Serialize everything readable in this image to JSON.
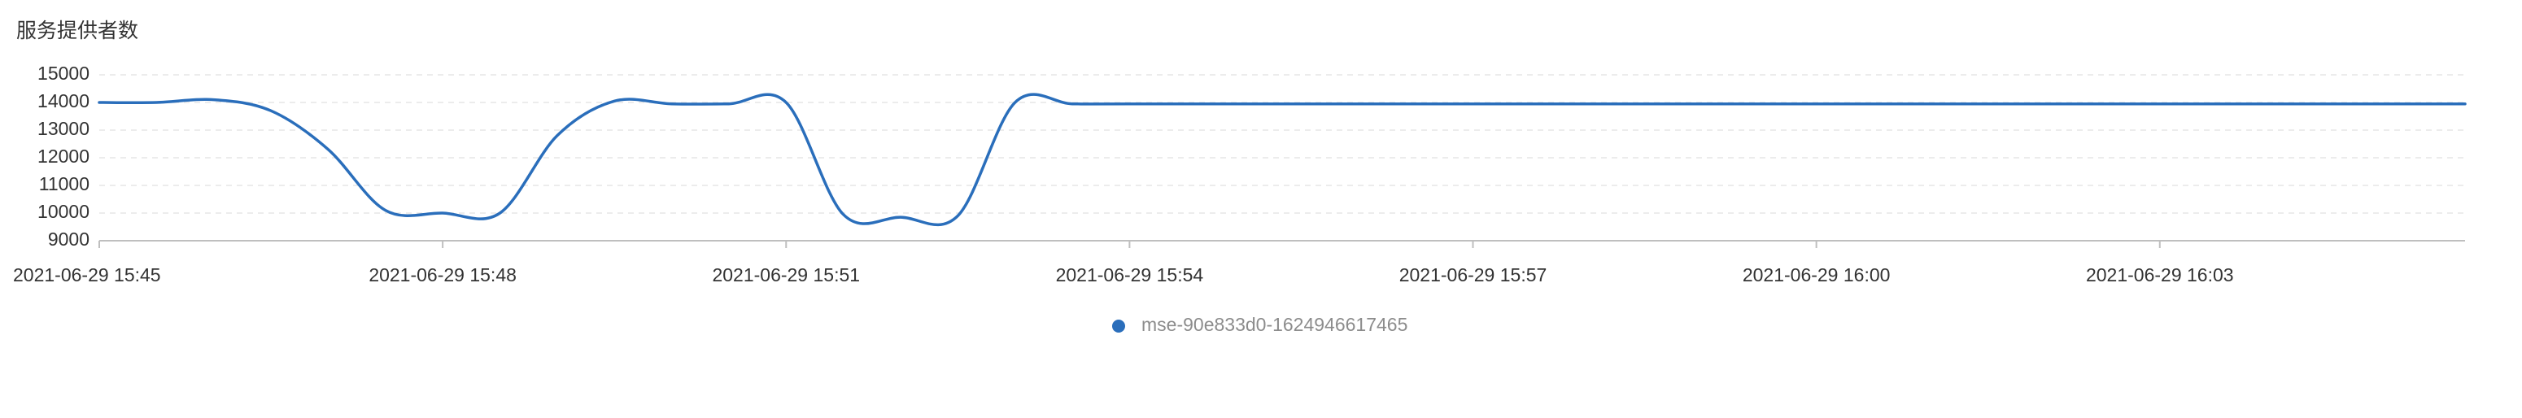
{
  "chart_data": {
    "type": "line",
    "title": "服务提供者数",
    "xlabel": "",
    "ylabel": "",
    "ylim": [
      9000,
      15000
    ],
    "yticks": [
      "15000",
      "14000",
      "13000",
      "12000",
      "11000",
      "10000",
      "9000"
    ],
    "x_range": [
      "2021-06-29 15:45",
      "2021-06-29 16:05:40"
    ],
    "xticks": [
      "2021-06-29 15:45",
      "2021-06-29 15:48",
      "2021-06-29 15:51",
      "2021-06-29 15:54",
      "2021-06-29 15:57",
      "2021-06-29 16:00",
      "2021-06-29 16:03"
    ],
    "grid": true,
    "legend_position": "bottom",
    "series": [
      {
        "name": "mse-90e833d0-1624946617465",
        "color": "#2a6ebb",
        "points": [
          [
            "2021-06-29 15:45:00",
            14000
          ],
          [
            "2021-06-29 15:45:30",
            14000
          ],
          [
            "2021-06-29 15:46:00",
            14100
          ],
          [
            "2021-06-29 15:46:30",
            13700
          ],
          [
            "2021-06-29 15:47:00",
            12300
          ],
          [
            "2021-06-29 15:47:30",
            10100
          ],
          [
            "2021-06-29 15:48:00",
            10000
          ],
          [
            "2021-06-29 15:48:30",
            10000
          ],
          [
            "2021-06-29 15:49:00",
            12800
          ],
          [
            "2021-06-29 15:49:30",
            14050
          ],
          [
            "2021-06-29 15:50:00",
            13950
          ],
          [
            "2021-06-29 15:50:30",
            13950
          ],
          [
            "2021-06-29 15:51:00",
            14000
          ],
          [
            "2021-06-29 15:51:30",
            9950
          ],
          [
            "2021-06-29 15:52:00",
            9850
          ],
          [
            "2021-06-29 15:52:30",
            9900
          ],
          [
            "2021-06-29 15:53:00",
            14000
          ],
          [
            "2021-06-29 15:53:30",
            13950
          ],
          [
            "2021-06-29 15:54:00",
            13950
          ],
          [
            "2021-06-29 15:57:00",
            13950
          ],
          [
            "2021-06-29 16:00:00",
            13950
          ],
          [
            "2021-06-29 16:03:00",
            13950
          ],
          [
            "2021-06-29 16:05:40",
            13950
          ]
        ]
      }
    ]
  }
}
